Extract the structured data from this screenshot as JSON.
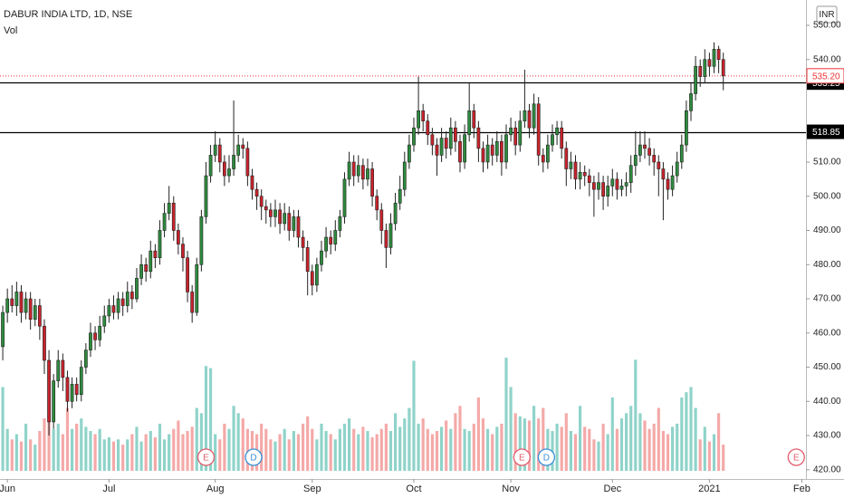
{
  "chart_data": {
    "type": "candlestick",
    "title": "DABUR INDIA LTD, 1D, NSE",
    "volume_label": "Vol",
    "currency": "INR",
    "up_color": "#2e8b3e",
    "down_color": "#c8232c",
    "volume_up_color": "#8fd3c9",
    "volume_down_color": "#f4a9a8",
    "open": [
      456,
      466,
      470,
      468,
      472,
      466,
      470,
      464,
      468,
      462,
      452,
      434,
      446,
      452,
      447,
      440,
      445,
      442,
      450,
      455,
      460,
      458,
      462,
      465,
      468,
      466,
      470,
      468,
      472,
      470,
      476,
      480,
      478,
      484,
      482,
      490,
      495,
      498,
      490,
      486,
      482,
      472,
      466,
      480,
      494,
      506,
      512,
      515,
      510,
      506,
      508,
      512,
      515,
      514,
      506,
      502,
      500,
      497,
      496,
      494,
      496,
      492,
      495,
      490,
      494,
      488,
      485,
      478,
      474,
      480,
      484,
      488,
      486,
      490,
      494,
      505,
      510,
      506,
      509,
      505,
      508,
      500,
      496,
      490,
      485,
      492,
      498,
      502,
      510,
      515,
      520,
      525,
      522,
      518,
      515,
      512,
      517,
      514,
      520,
      516,
      510,
      518,
      525,
      520,
      514,
      510,
      515,
      512,
      516,
      510,
      518,
      520,
      515,
      522,
      525,
      520,
      527,
      512,
      510,
      515,
      518,
      520,
      514,
      508,
      510,
      505,
      507,
      506,
      504,
      502,
      504,
      500,
      503,
      505,
      502,
      503,
      504,
      509,
      512,
      515,
      514,
      512,
      510,
      508,
      505,
      502,
      506,
      510,
      515,
      525,
      530,
      538,
      535,
      540,
      538,
      543,
      540
    ],
    "high": [
      468,
      473,
      474,
      475,
      474,
      472,
      472,
      470,
      470,
      464,
      455,
      448,
      455,
      454,
      449,
      447,
      447,
      452,
      457,
      463,
      462,
      465,
      468,
      470,
      471,
      472,
      472,
      475,
      474,
      479,
      483,
      482,
      487,
      486,
      493,
      498,
      503,
      500,
      492,
      488,
      484,
      474,
      482,
      496,
      510,
      515,
      519,
      517,
      512,
      512,
      528,
      518,
      517,
      516,
      508,
      504,
      502,
      499,
      498,
      499,
      498,
      498,
      497,
      496,
      496,
      490,
      487,
      480,
      482,
      487,
      491,
      490,
      493,
      496,
      507,
      513,
      512,
      512,
      511,
      511,
      510,
      502,
      498,
      492,
      495,
      501,
      506,
      513,
      518,
      523,
      535,
      527,
      524,
      520,
      517,
      520,
      519,
      523,
      522,
      518,
      521,
      533,
      527,
      522,
      516,
      518,
      517,
      519,
      518,
      521,
      523,
      522,
      525,
      537,
      527,
      530,
      529,
      514,
      518,
      521,
      522,
      522,
      516,
      513,
      512,
      510,
      509,
      508,
      506,
      507,
      506,
      506,
      508,
      507,
      505,
      507,
      512,
      519,
      519,
      519,
      517,
      514,
      512,
      510,
      507,
      509,
      513,
      518,
      528,
      533,
      541,
      540,
      543,
      542,
      545,
      544,
      542
    ],
    "low": [
      452,
      463,
      466,
      465,
      463,
      464,
      461,
      462,
      458,
      448,
      430,
      432,
      444,
      443,
      437,
      438,
      440,
      440,
      448,
      453,
      455,
      456,
      460,
      463,
      464,
      464,
      465,
      466,
      467,
      469,
      474,
      475,
      476,
      479,
      480,
      488,
      493,
      487,
      483,
      478,
      469,
      463,
      465,
      478,
      492,
      504,
      510,
      507,
      503,
      504,
      506,
      510,
      511,
      503,
      499,
      496,
      493,
      492,
      491,
      491,
      489,
      490,
      487,
      488,
      485,
      481,
      471,
      471,
      472,
      478,
      482,
      483,
      484,
      488,
      492,
      503,
      503,
      504,
      502,
      503,
      497,
      493,
      486,
      479,
      483,
      490,
      496,
      500,
      508,
      513,
      518,
      519,
      515,
      512,
      506,
      510,
      511,
      512,
      513,
      507,
      508,
      516,
      517,
      510,
      507,
      508,
      509,
      510,
      506,
      508,
      516,
      512,
      513,
      520,
      517,
      518,
      509,
      507,
      508,
      513,
      515,
      511,
      503,
      505,
      502,
      502,
      503,
      500,
      494,
      499,
      496,
      497,
      500,
      499,
      500,
      500,
      501,
      506,
      510,
      511,
      509,
      506,
      500,
      493,
      499,
      500,
      504,
      508,
      513,
      522,
      528,
      532,
      533,
      535,
      536,
      536,
      531
    ],
    "close": [
      466,
      470,
      468,
      472,
      466,
      470,
      464,
      468,
      462,
      452,
      434,
      446,
      452,
      447,
      440,
      445,
      442,
      450,
      455,
      460,
      458,
      462,
      465,
      468,
      466,
      470,
      468,
      472,
      470,
      476,
      480,
      478,
      484,
      482,
      490,
      495,
      498,
      490,
      486,
      482,
      472,
      466,
      480,
      494,
      506,
      512,
      515,
      510,
      506,
      508,
      512,
      515,
      514,
      506,
      502,
      500,
      497,
      496,
      494,
      496,
      492,
      495,
      490,
      494,
      488,
      485,
      478,
      474,
      480,
      484,
      488,
      486,
      490,
      494,
      505,
      510,
      506,
      509,
      505,
      508,
      500,
      496,
      490,
      485,
      492,
      498,
      502,
      510,
      515,
      520,
      525,
      522,
      518,
      515,
      512,
      517,
      514,
      520,
      516,
      510,
      518,
      525,
      520,
      514,
      510,
      515,
      512,
      516,
      510,
      518,
      520,
      515,
      522,
      525,
      520,
      527,
      512,
      510,
      515,
      518,
      520,
      514,
      508,
      510,
      505,
      507,
      506,
      504,
      502,
      504,
      500,
      503,
      505,
      502,
      503,
      504,
      509,
      512,
      515,
      514,
      512,
      510,
      508,
      505,
      502,
      506,
      510,
      515,
      525,
      530,
      538,
      535,
      540,
      538,
      543,
      540,
      535.2
    ],
    "volume": [
      80,
      40,
      30,
      35,
      28,
      45,
      30,
      25,
      38,
      50,
      55,
      40,
      45,
      35,
      60,
      40,
      45,
      50,
      42,
      38,
      35,
      40,
      30,
      32,
      28,
      30,
      25,
      30,
      35,
      42,
      28,
      35,
      38,
      32,
      45,
      30,
      35,
      40,
      48,
      35,
      38,
      42,
      60,
      55,
      100,
      98,
      35,
      30,
      45,
      40,
      62,
      55,
      50,
      40,
      38,
      35,
      45,
      40,
      30,
      28,
      35,
      40,
      30,
      38,
      35,
      45,
      52,
      40,
      30,
      45,
      38,
      35,
      30,
      40,
      45,
      50,
      40,
      35,
      42,
      38,
      32,
      35,
      40,
      45,
      38,
      55,
      42,
      50,
      60,
      105,
      45,
      50,
      40,
      35,
      38,
      42,
      48,
      40,
      55,
      62,
      40,
      38,
      45,
      70,
      50,
      40,
      35,
      42,
      45,
      108,
      80,
      55,
      52,
      50,
      48,
      62,
      50,
      60,
      40,
      38,
      45,
      42,
      55,
      38,
      35,
      62,
      42,
      40,
      30,
      28,
      45,
      35,
      70,
      40,
      50,
      55,
      62,
      106,
      55,
      48,
      40,
      45,
      60,
      38,
      35,
      42,
      45,
      70,
      75,
      80,
      60,
      30,
      42,
      28,
      35,
      55,
      25
    ],
    "last_price_label": "535.20",
    "price_lines": [
      533.25,
      518.85
    ],
    "xlim": [
      -0.6,
      173.9
    ],
    "xticks": [
      {
        "value": 1,
        "label": "Jun"
      },
      {
        "value": 23,
        "label": "Jul"
      },
      {
        "value": 46,
        "label": "Aug"
      },
      {
        "value": 67,
        "label": "Sep"
      },
      {
        "value": 89,
        "label": "Oct"
      },
      {
        "value": 110,
        "label": "Nov"
      },
      {
        "value": 132,
        "label": "Dec"
      },
      {
        "value": 153,
        "label": "2021"
      },
      {
        "value": 173,
        "label": "Feb"
      }
    ],
    "ylim": [
      417.3,
      557.4
    ],
    "yticks": [
      {
        "value": 550,
        "label": "550.00"
      },
      {
        "value": 540,
        "label": "540.00"
      },
      {
        "value": 510,
        "label": "510.00"
      },
      {
        "value": 500,
        "label": "500.00"
      },
      {
        "value": 490,
        "label": "490.00"
      },
      {
        "value": 480,
        "label": "480.00"
      },
      {
        "value": 470,
        "label": "470.00"
      },
      {
        "value": 460,
        "label": "460.00"
      },
      {
        "value": 450,
        "label": "450.00"
      },
      {
        "value": 440,
        "label": "440.00"
      },
      {
        "value": 430,
        "label": "430.00"
      },
      {
        "value": 420,
        "label": "420.00"
      }
    ],
    "events": [
      {
        "label": "E",
        "x": 44
      },
      {
        "label": "D",
        "x": 54.3
      },
      {
        "label": "E",
        "x": 112.4
      },
      {
        "label": "D",
        "x": 117.7
      },
      {
        "label": "E",
        "x": 171.8
      }
    ]
  }
}
